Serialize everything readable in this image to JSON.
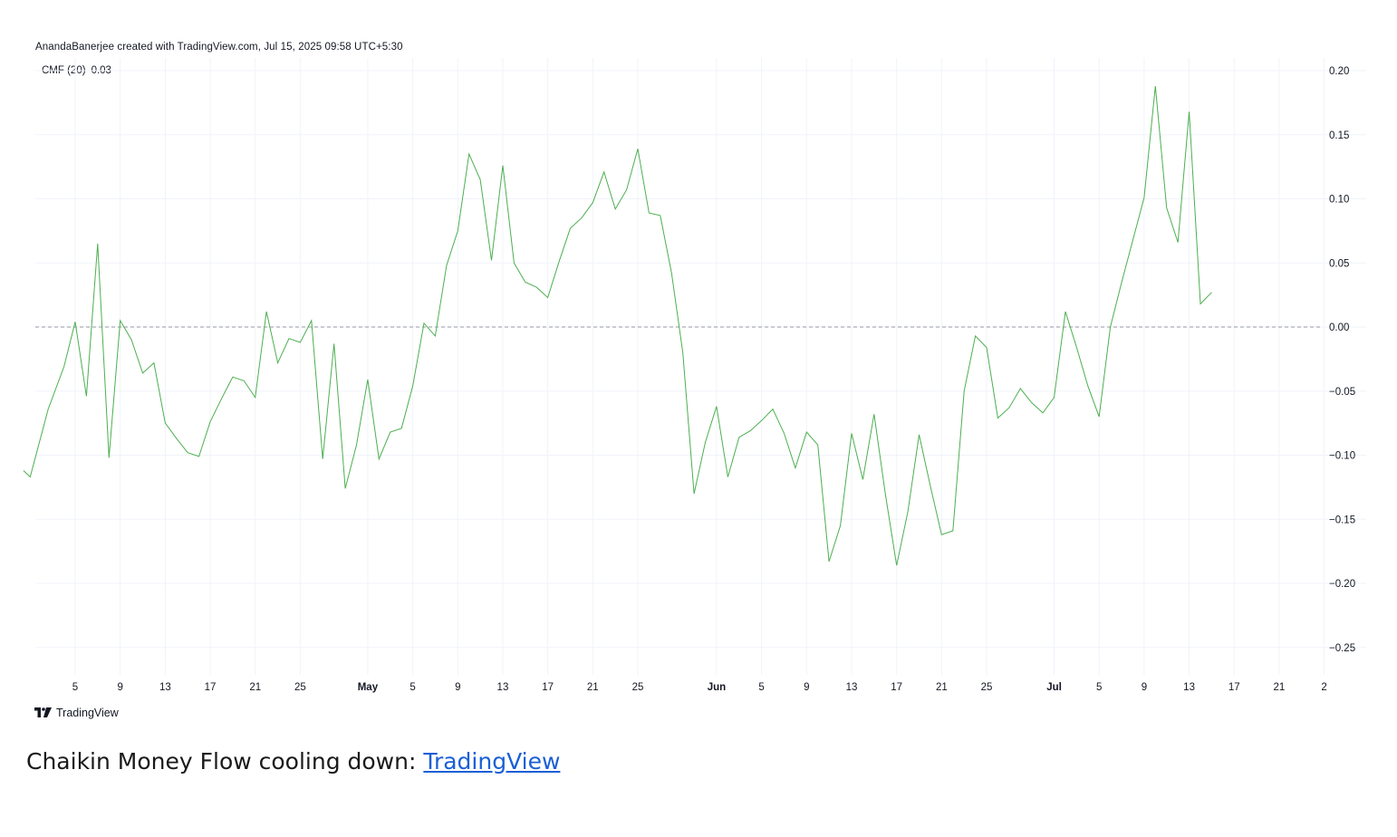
{
  "credit": "AnandaBanerjee created with TradingView.com, Jul 15, 2025 09:58 UTC+5:30",
  "legend": {
    "name": "CMF (20)",
    "value": "0.03"
  },
  "brand": "TradingView",
  "caption": {
    "text": "Chaikin Money Flow cooling down: ",
    "link": "TradingView"
  },
  "colors": {
    "line": "#4caf50",
    "zero": "#9598a1",
    "grid": "#f0f3fa"
  },
  "chart_data": {
    "type": "line",
    "title": "",
    "xlabel": "",
    "ylabel": "",
    "ylim": [
      -0.28,
      0.2
    ],
    "zero_line": 0,
    "grid": true,
    "y_ticks": [
      "0.20",
      "0.15",
      "0.10",
      "0.05",
      "0.00",
      "−0.05",
      "−0.10",
      "−0.15",
      "−0.20",
      "−0.25"
    ],
    "x_ticks": [
      {
        "label": "5",
        "day": 5,
        "bold": false
      },
      {
        "label": "9",
        "day": 9,
        "bold": false
      },
      {
        "label": "13",
        "day": 13,
        "bold": false
      },
      {
        "label": "17",
        "day": 17,
        "bold": false
      },
      {
        "label": "21",
        "day": 21,
        "bold": false
      },
      {
        "label": "25",
        "day": 25,
        "bold": false
      },
      {
        "label": "May",
        "day": 31,
        "bold": true
      },
      {
        "label": "5",
        "day": 35,
        "bold": false
      },
      {
        "label": "9",
        "day": 39,
        "bold": false
      },
      {
        "label": "13",
        "day": 43,
        "bold": false
      },
      {
        "label": "17",
        "day": 47,
        "bold": false
      },
      {
        "label": "21",
        "day": 51,
        "bold": false
      },
      {
        "label": "25",
        "day": 55,
        "bold": false
      },
      {
        "label": "Jun",
        "day": 62,
        "bold": true
      },
      {
        "label": "5",
        "day": 66,
        "bold": false
      },
      {
        "label": "9",
        "day": 70,
        "bold": false
      },
      {
        "label": "13",
        "day": 74,
        "bold": false
      },
      {
        "label": "17",
        "day": 78,
        "bold": false
      },
      {
        "label": "21",
        "day": 82,
        "bold": false
      },
      {
        "label": "25",
        "day": 86,
        "bold": false
      },
      {
        "label": "Jul",
        "day": 92,
        "bold": true
      },
      {
        "label": "5",
        "day": 96,
        "bold": false
      },
      {
        "label": "9",
        "day": 100,
        "bold": false
      },
      {
        "label": "13",
        "day": 104,
        "bold": false
      },
      {
        "label": "17",
        "day": 108,
        "bold": false
      },
      {
        "label": "21",
        "day": 112,
        "bold": false
      },
      {
        "label": "2",
        "day": 116,
        "bold": false
      }
    ],
    "series": [
      {
        "points": [
          [
            0.4,
            -0.112
          ],
          [
            1,
            -0.117
          ],
          [
            2.6,
            -0.064
          ],
          [
            4,
            -0.031
          ],
          [
            5,
            0.004
          ],
          [
            6,
            -0.054
          ],
          [
            7,
            0.065
          ],
          [
            8,
            -0.102
          ],
          [
            9,
            0.005
          ],
          [
            10,
            -0.01
          ],
          [
            11,
            -0.036
          ],
          [
            12,
            -0.028
          ],
          [
            13,
            -0.075
          ],
          [
            14,
            -0.087
          ],
          [
            15,
            -0.098
          ],
          [
            16,
            -0.101
          ],
          [
            17,
            -0.074
          ],
          [
            18,
            -0.056
          ],
          [
            19,
            -0.039
          ],
          [
            20,
            -0.042
          ],
          [
            21,
            -0.055
          ],
          [
            22,
            0.012
          ],
          [
            23,
            -0.028
          ],
          [
            24,
            -0.009
          ],
          [
            25,
            -0.012
          ],
          [
            26,
            0.005
          ],
          [
            27,
            -0.103
          ],
          [
            28,
            -0.013
          ],
          [
            29,
            -0.126
          ],
          [
            30,
            -0.092
          ],
          [
            31,
            -0.041
          ],
          [
            32,
            -0.103
          ],
          [
            33,
            -0.082
          ],
          [
            34,
            -0.079
          ],
          [
            35,
            -0.046
          ],
          [
            36,
            0.003
          ],
          [
            37,
            -0.007
          ],
          [
            38,
            0.048
          ],
          [
            39,
            0.075
          ],
          [
            40,
            0.135
          ],
          [
            41,
            0.115
          ],
          [
            42,
            0.052
          ],
          [
            43,
            0.126
          ],
          [
            44,
            0.05
          ],
          [
            45,
            0.035
          ],
          [
            46,
            0.031
          ],
          [
            47,
            0.023
          ],
          [
            48,
            0.051
          ],
          [
            49,
            0.077
          ],
          [
            50,
            0.085
          ],
          [
            51,
            0.097
          ],
          [
            52,
            0.121
          ],
          [
            53,
            0.092
          ],
          [
            54,
            0.107
          ],
          [
            55,
            0.139
          ],
          [
            56,
            0.089
          ],
          [
            57,
            0.087
          ],
          [
            58,
            0.042
          ],
          [
            59,
            -0.02
          ],
          [
            60,
            -0.13
          ],
          [
            61,
            -0.09
          ],
          [
            62,
            -0.062
          ],
          [
            63,
            -0.117
          ],
          [
            64,
            -0.086
          ],
          [
            65,
            -0.081
          ],
          [
            66,
            -0.073
          ],
          [
            67,
            -0.064
          ],
          [
            68,
            -0.083
          ],
          [
            69,
            -0.11
          ],
          [
            70,
            -0.082
          ],
          [
            71,
            -0.092
          ],
          [
            72,
            -0.183
          ],
          [
            73,
            -0.155
          ],
          [
            74,
            -0.083
          ],
          [
            75,
            -0.119
          ],
          [
            76,
            -0.068
          ],
          [
            77,
            -0.13
          ],
          [
            78,
            -0.186
          ],
          [
            79,
            -0.144
          ],
          [
            80,
            -0.084
          ],
          [
            81,
            -0.124
          ],
          [
            82,
            -0.162
          ],
          [
            83,
            -0.159
          ],
          [
            84,
            -0.05
          ],
          [
            85,
            -0.007
          ],
          [
            86,
            -0.016
          ],
          [
            87,
            -0.071
          ],
          [
            88,
            -0.063
          ],
          [
            89,
            -0.048
          ],
          [
            90,
            -0.059
          ],
          [
            91,
            -0.067
          ],
          [
            92,
            -0.055
          ],
          [
            93,
            0.012
          ],
          [
            94,
            -0.016
          ],
          [
            95,
            -0.046
          ],
          [
            96,
            -0.07
          ],
          [
            97,
            0.0
          ],
          [
            98,
            0.035
          ],
          [
            99,
            0.068
          ],
          [
            100,
            0.101
          ],
          [
            101,
            0.188
          ],
          [
            102,
            0.093
          ],
          [
            103,
            0.066
          ],
          [
            104,
            0.168
          ],
          [
            105,
            0.018
          ],
          [
            106,
            0.027
          ]
        ]
      }
    ]
  }
}
